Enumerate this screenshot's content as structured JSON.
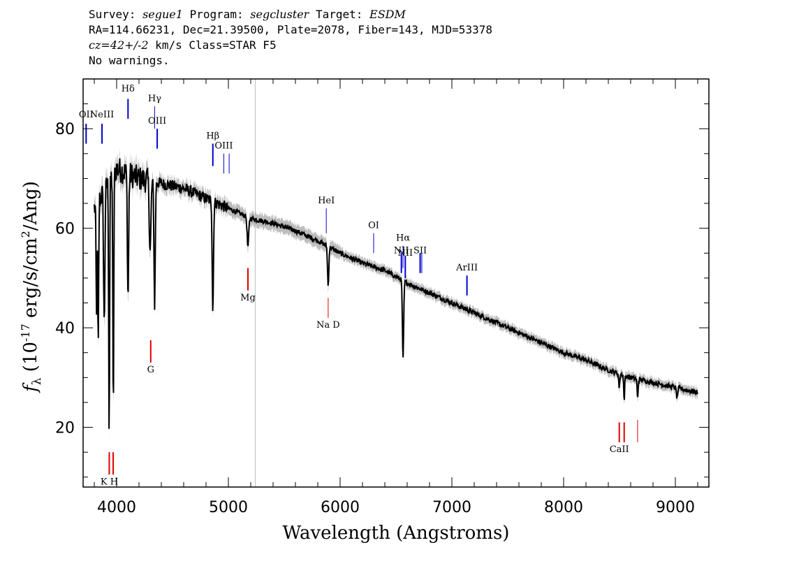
{
  "header": {
    "l1": {
      "survey_label": "Survey: ",
      "survey": "segue1",
      "program_label": " Program: ",
      "program": "segcluster",
      "target_label": " Target: ",
      "target": "ESDM"
    },
    "l2": "RA=114.66231, Dec=21.39500, Plate=2078, Fiber=143, MJD=53378",
    "l3": {
      "cz": "cz=42+/-2",
      "rest": " km/s Class=STAR F5"
    },
    "l4": "No warnings."
  },
  "chart_data": {
    "type": "line",
    "xlabel": "Wavelength (Angstroms)",
    "ylabel": "f_λ (10^-17 erg/s/cm^2/Ang)",
    "ylabel_parts": {
      "sym": "f",
      "sub": "λ",
      "pre": " (10",
      "exp": "-17",
      "mid": " erg/s/cm",
      "exp2": "2",
      "post": "/Ang)"
    },
    "xlim": [
      3700,
      9300
    ],
    "ylim": [
      8,
      90
    ],
    "xticks": [
      "4000",
      "5000",
      "6000",
      "7000",
      "8000",
      "9000"
    ],
    "yticks": [
      "20",
      "40",
      "60",
      "80"
    ],
    "redshift_marker_x": 5240,
    "colors": {
      "spectrum": "#000000",
      "error_band": "#bdbdbd",
      "emission": "#0000cc",
      "absorption": "#dd0000",
      "marker": "#bbbbbb"
    },
    "continuum": [
      [
        3800,
        64
      ],
      [
        3900,
        68
      ],
      [
        4000,
        72
      ],
      [
        4100,
        71
      ],
      [
        4200,
        70
      ],
      [
        4400,
        69
      ],
      [
        4600,
        68
      ],
      [
        4800,
        66
      ],
      [
        5000,
        64
      ],
      [
        5200,
        62
      ],
      [
        5400,
        61
      ],
      [
        5600,
        59.5
      ],
      [
        5800,
        57.5
      ],
      [
        6000,
        55
      ],
      [
        6200,
        53
      ],
      [
        6400,
        51.5
      ],
      [
        6600,
        49
      ],
      [
        6800,
        47
      ],
      [
        7000,
        45
      ],
      [
        7200,
        43
      ],
      [
        7400,
        41
      ],
      [
        7600,
        39
      ],
      [
        7800,
        37
      ],
      [
        8000,
        35
      ],
      [
        8200,
        33.5
      ],
      [
        8400,
        31.5
      ],
      [
        8600,
        30
      ],
      [
        8800,
        29
      ],
      [
        9000,
        28
      ],
      [
        9200,
        27
      ]
    ],
    "absorption_features": [
      {
        "x": 3820,
        "depth": 23,
        "width": 6
      },
      {
        "x": 3835,
        "depth": 30,
        "width": 6
      },
      {
        "x": 3889,
        "depth": 27,
        "width": 8
      },
      {
        "x": 3933,
        "depth": 50,
        "width": 6
      },
      {
        "x": 3970,
        "depth": 48,
        "width": 6
      },
      {
        "x": 4102,
        "depth": 25,
        "width": 8
      },
      {
        "x": 4300,
        "depth": 14,
        "width": 10
      },
      {
        "x": 4340,
        "depth": 25,
        "width": 8
      },
      {
        "x": 4861,
        "depth": 22,
        "width": 8
      },
      {
        "x": 5175,
        "depth": 6,
        "width": 10
      },
      {
        "x": 5893,
        "depth": 8,
        "width": 8
      },
      {
        "x": 6563,
        "depth": 16,
        "width": 8
      },
      {
        "x": 8498,
        "depth": 3,
        "width": 6
      },
      {
        "x": 8542,
        "depth": 5,
        "width": 6
      },
      {
        "x": 8662,
        "depth": 4,
        "width": 6
      },
      {
        "x": 9015,
        "depth": 2,
        "width": 8
      }
    ],
    "emission_lines": [
      {
        "label": "OII",
        "x": 3727,
        "y1": 77,
        "y2": 81,
        "label_y": 82.3,
        "w": 2
      },
      {
        "label": "NeIII",
        "x": 3869,
        "y1": 77,
        "y2": 81,
        "label_y": 82.3,
        "w": 2
      },
      {
        "label": "Hδ",
        "x": 4102,
        "y1": 82,
        "y2": 86,
        "label_y": 87.5,
        "w": 2
      },
      {
        "label": "Hγ",
        "x": 4340,
        "y1": 80,
        "y2": 84.5,
        "label_y": 85.5,
        "w": 1
      },
      {
        "label": "OIII",
        "x": 4363,
        "y1": 76,
        "y2": 80,
        "label_y": 81,
        "w": 2
      },
      {
        "label": "Hβ",
        "x": 4861,
        "y1": 72.5,
        "y2": 77,
        "label_y": 78,
        "w": 2
      },
      {
        "label": "OIII",
        "x": 4959,
        "y1": 71,
        "y2": 75,
        "label_y": 76,
        "w": 1
      },
      {
        "label": "",
        "x": 5007,
        "y1": 71,
        "y2": 75,
        "label_y": 0,
        "w": 1
      },
      {
        "label": "HeI",
        "x": 5876,
        "y1": 59,
        "y2": 64,
        "label_y": 65,
        "w": 1
      },
      {
        "label": "OI",
        "x": 6300,
        "y1": 55,
        "y2": 59,
        "label_y": 60,
        "w": 1
      },
      {
        "label": "NII",
        "x": 6548,
        "y1": 51,
        "y2": 55,
        "label_y": 55,
        "w": 2
      },
      {
        "label": "Hα",
        "x": 6563,
        "y1": 52,
        "y2": 56.5,
        "label_y": 57.5,
        "w": 1
      },
      {
        "label": "NII",
        "x": 6583,
        "y1": 50,
        "y2": 54.5,
        "label_y": 54.5,
        "w": 2
      },
      {
        "label": "SII",
        "x": 6716,
        "y1": 51,
        "y2": 55,
        "label_y": 55,
        "w": 2
      },
      {
        "label": "",
        "x": 6731,
        "y1": 51,
        "y2": 55,
        "label_y": 0,
        "w": 1
      },
      {
        "label": "ArIII",
        "x": 7135,
        "y1": 46.5,
        "y2": 50.5,
        "label_y": 51.5,
        "w": 2
      }
    ],
    "absorption_lines": [
      {
        "label": "K H",
        "x": 3934,
        "y1": 10.5,
        "y2": 15,
        "label_y": 8.5,
        "w": 2
      },
      {
        "label": "",
        "x": 3969,
        "y1": 10.5,
        "y2": 15,
        "label_y": 0,
        "w": 2
      },
      {
        "label": "G",
        "x": 4305,
        "y1": 33,
        "y2": 37.5,
        "label_y": 31,
        "w": 2
      },
      {
        "label": "Mg",
        "x": 5175,
        "y1": 47.5,
        "y2": 52,
        "label_y": 45.5,
        "w": 2
      },
      {
        "label": "Na  D",
        "x": 5893,
        "y1": 42,
        "y2": 46,
        "label_y": 40,
        "w": 1
      },
      {
        "label": "CaII",
        "x": 8498,
        "y1": 17,
        "y2": 21,
        "label_y": 15,
        "w": 2
      },
      {
        "label": "",
        "x": 8542,
        "y1": 17,
        "y2": 21,
        "label_y": 0,
        "w": 2
      },
      {
        "label": "",
        "x": 8662,
        "y1": 17,
        "y2": 21.5,
        "label_y": 0,
        "w": 1
      }
    ]
  }
}
